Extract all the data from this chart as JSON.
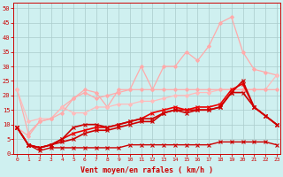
{
  "xlabel": "Vent moyen/en rafales ( km/h )",
  "xlim": [
    -0.3,
    23.3
  ],
  "ylim": [
    0,
    52
  ],
  "yticks": [
    0,
    5,
    10,
    15,
    20,
    25,
    30,
    35,
    40,
    45,
    50
  ],
  "xticks": [
    0,
    1,
    2,
    3,
    4,
    5,
    6,
    7,
    8,
    9,
    10,
    11,
    12,
    13,
    14,
    15,
    16,
    17,
    18,
    19,
    20,
    21,
    22,
    23
  ],
  "background_color": "#cff0f0",
  "grid_color": "#aacccc",
  "series": [
    {
      "x": [
        0,
        1,
        2,
        3,
        4,
        5,
        6,
        7,
        8,
        9,
        10,
        11,
        12,
        13,
        14,
        15,
        16,
        17,
        18,
        19,
        20,
        21,
        22,
        23
      ],
      "y": [
        22,
        7,
        11,
        12,
        16,
        19,
        22,
        21,
        16,
        22,
        22,
        30,
        22,
        30,
        30,
        35,
        32,
        37,
        45,
        47,
        35,
        29,
        28,
        27
      ],
      "color": "#ffaaaa",
      "lw": 0.9,
      "marker": "D",
      "ms": 2.0,
      "zorder": 2
    },
    {
      "x": [
        0,
        1,
        2,
        3,
        4,
        5,
        6,
        7,
        8,
        9,
        10,
        11,
        12,
        13,
        14,
        15,
        16,
        17,
        18,
        19,
        20,
        21,
        22,
        23
      ],
      "y": [
        22,
        11,
        12,
        12,
        16,
        14,
        14,
        16,
        16,
        17,
        17,
        18,
        18,
        19,
        20,
        20,
        21,
        21,
        22,
        22,
        22,
        22,
        22,
        27
      ],
      "color": "#ffbbbb",
      "lw": 0.9,
      "marker": "D",
      "ms": 2.0,
      "zorder": 2
    },
    {
      "x": [
        0,
        1,
        2,
        3,
        4,
        5,
        6,
        7,
        8,
        9,
        10,
        11,
        12,
        13,
        14,
        15,
        16,
        17,
        18,
        19,
        20,
        21,
        22,
        23
      ],
      "y": [
        9,
        6,
        11,
        12,
        14,
        19,
        21,
        19,
        20,
        21,
        22,
        22,
        22,
        22,
        22,
        22,
        22,
        22,
        22,
        22,
        22,
        22,
        22,
        22
      ],
      "color": "#ffaaaa",
      "lw": 0.9,
      "marker": "D",
      "ms": 2.0,
      "zorder": 2
    },
    {
      "x": [
        0,
        1,
        2,
        3,
        4,
        5,
        6,
        7,
        8,
        9,
        10,
        11,
        12,
        13,
        14,
        15,
        16,
        17,
        18,
        19,
        20,
        21,
        22,
        23
      ],
      "y": [
        9,
        3,
        1,
        2,
        2,
        2,
        2,
        2,
        2,
        2,
        3,
        3,
        3,
        3,
        3,
        3,
        3,
        3,
        4,
        4,
        4,
        4,
        4,
        3
      ],
      "color": "#cc0000",
      "lw": 1.0,
      "marker": "x",
      "ms": 3,
      "zorder": 3
    },
    {
      "x": [
        0,
        1,
        2,
        3,
        4,
        5,
        6,
        7,
        8,
        9,
        10,
        11,
        12,
        13,
        14,
        15,
        16,
        17,
        18,
        19,
        20,
        21,
        22,
        23
      ],
      "y": [
        9,
        3,
        2,
        3,
        4,
        5,
        7,
        8,
        8,
        9,
        10,
        11,
        11,
        14,
        15,
        15,
        15,
        15,
        16,
        21,
        21,
        16,
        13,
        10
      ],
      "color": "#cc0000",
      "lw": 1.2,
      "marker": "x",
      "ms": 3,
      "zorder": 3
    },
    {
      "x": [
        0,
        1,
        2,
        3,
        4,
        5,
        6,
        7,
        8,
        9,
        10,
        11,
        12,
        13,
        14,
        15,
        16,
        17,
        18,
        19,
        20,
        21,
        22,
        23
      ],
      "y": [
        9,
        3,
        2,
        3,
        5,
        7,
        8,
        9,
        9,
        10,
        11,
        12,
        14,
        15,
        16,
        15,
        16,
        16,
        17,
        22,
        24,
        16,
        13,
        10
      ],
      "color": "#ee0000",
      "lw": 1.2,
      "marker": "x",
      "ms": 3,
      "zorder": 3
    },
    {
      "x": [
        0,
        1,
        2,
        3,
        4,
        5,
        6,
        7,
        8,
        9,
        10,
        11,
        12,
        13,
        14,
        15,
        16,
        17,
        18,
        19,
        20,
        21,
        22,
        23
      ],
      "y": [
        9,
        3,
        2,
        3,
        5,
        9,
        10,
        10,
        9,
        10,
        11,
        12,
        12,
        14,
        15,
        14,
        15,
        15,
        16,
        21,
        25,
        16,
        13,
        10
      ],
      "color": "#cc0000",
      "lw": 1.2,
      "marker": "x",
      "ms": 3,
      "zorder": 4
    }
  ]
}
